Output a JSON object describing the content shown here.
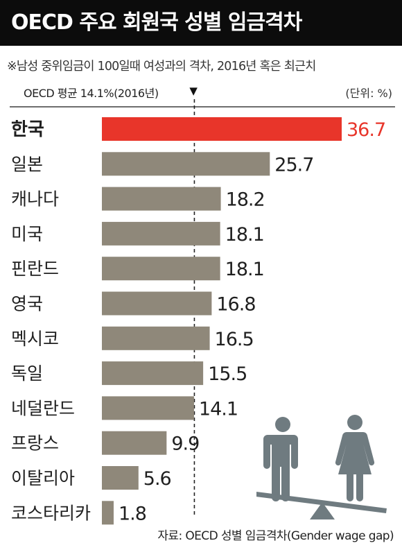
{
  "title": "OECD 주요 회원국 성별 임금격차",
  "note": "※남성 중위임금이 100일때 여성과의 격차, 2016년 혹은 최근치",
  "average": {
    "label": "OECD 평균 14.1%(2016년)",
    "marker": "▼",
    "value": 14.1
  },
  "unit": "(단위: %)",
  "source": "자료: OECD 성별 임금격차(Gender wage gap)",
  "colors": {
    "highlight": "#e8352a",
    "bar": "#8f887a",
    "title_bg": "#0c0c0c",
    "icon": "#6f7b80"
  },
  "chart_data": {
    "type": "bar",
    "orientation": "horizontal",
    "categories": [
      "한국",
      "일본",
      "캐나다",
      "미국",
      "핀란드",
      "영국",
      "멕시코",
      "독일",
      "네덜란드",
      "프랑스",
      "이탈리아",
      "코스타리카"
    ],
    "values": [
      36.7,
      25.7,
      18.2,
      18.1,
      18.1,
      16.8,
      16.5,
      15.5,
      14.1,
      9.9,
      5.6,
      1.8
    ],
    "value_labels": [
      "36.7",
      "25.7",
      "18.2",
      "18.1",
      "18.1",
      "16.8",
      "16.5",
      "15.5",
      "14.1",
      "9.9",
      "5.6",
      "1.8"
    ],
    "highlight_index": 0,
    "reference_line": 14.1,
    "xlim": [
      0,
      36.7
    ],
    "grid": false
  }
}
